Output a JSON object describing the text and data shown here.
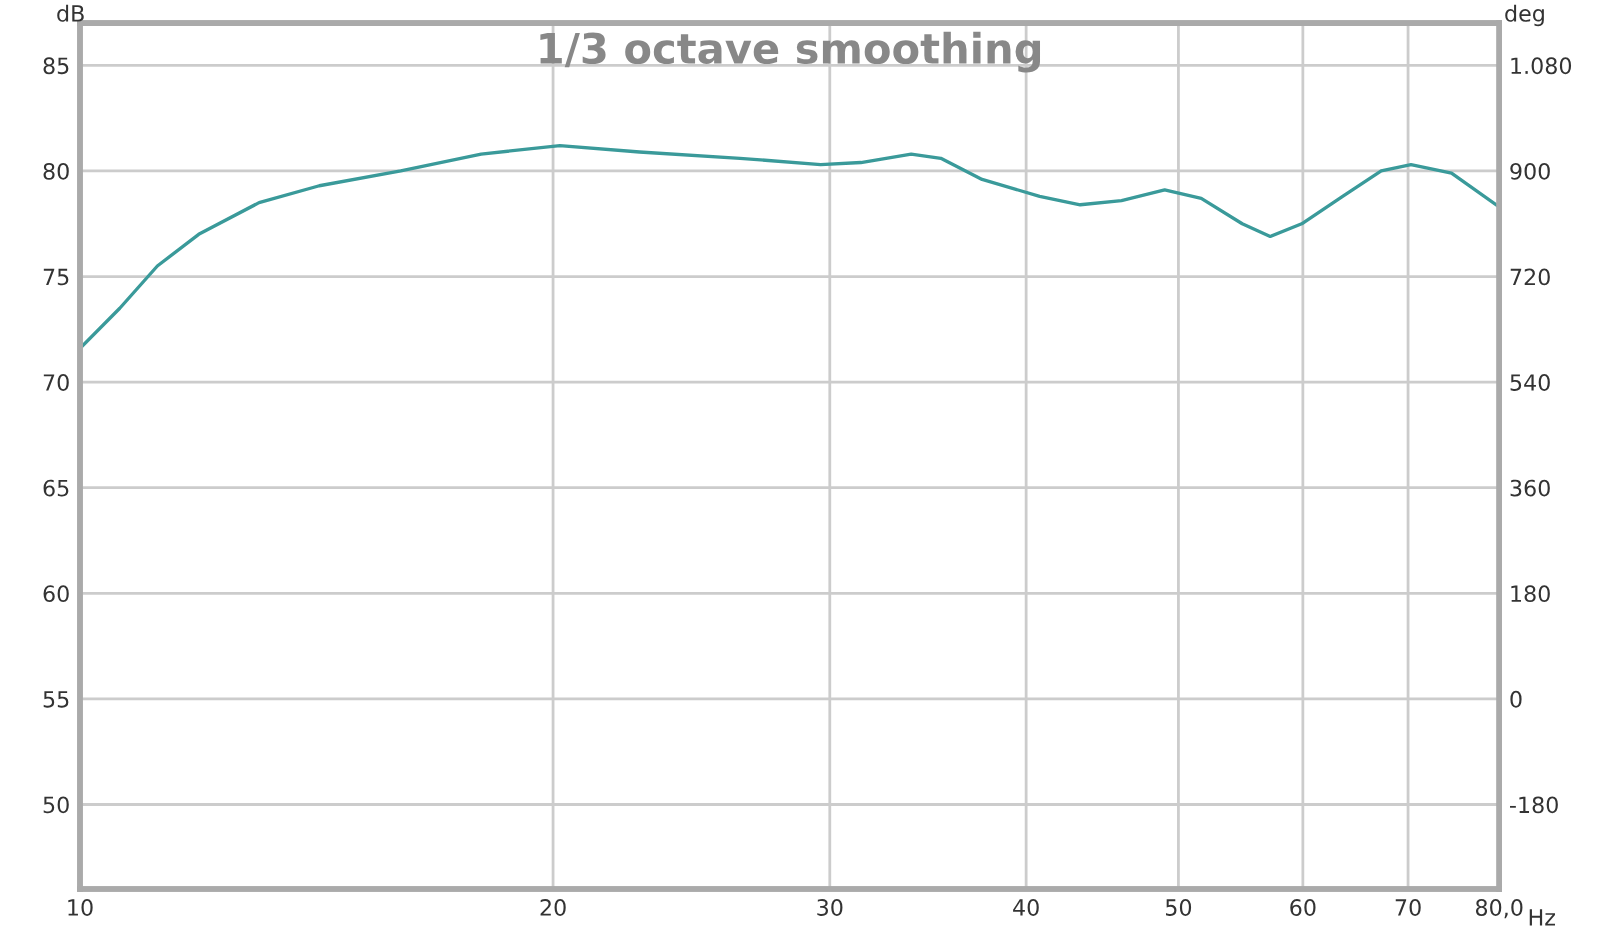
{
  "chart_data": {
    "type": "line",
    "title": "1/3 octave smoothing",
    "xlabel": "Hz",
    "ylabel": "dB",
    "y2label": "deg",
    "x": [
      10,
      10.6,
      11.2,
      11.9,
      13.0,
      14.2,
      16.0,
      18.0,
      20.2,
      22.7,
      26.3,
      29.6,
      31.4,
      33.8,
      35.3,
      37.5,
      40.8,
      43.3,
      46.0,
      49.0,
      51.7,
      54.9,
      57.2,
      59.9,
      63.6,
      67.3,
      70.3,
      74.6,
      80
    ],
    "series": [
      {
        "color": "#3a9a9a",
        "values": [
          71.6,
          73.5,
          75.5,
          77.0,
          78.5,
          79.3,
          80.0,
          80.8,
          81.2,
          80.9,
          80.6,
          80.3,
          80.4,
          80.8,
          80.6,
          79.6,
          78.8,
          78.4,
          78.6,
          79.1,
          78.7,
          77.5,
          76.9,
          77.5,
          78.8,
          80.0,
          80.3,
          79.9,
          78.3
        ]
      }
    ],
    "log": "x",
    "xlim": [
      10,
      80
    ],
    "xticks": [
      10,
      20,
      30,
      40,
      50,
      60,
      70,
      {
        "value": 80,
        "label": "80,0"
      }
    ],
    "ylim": [
      46,
      87
    ],
    "yticks": [
      50,
      55,
      60,
      65,
      70,
      75,
      80,
      85
    ],
    "y2lim": [
      -324,
      1152
    ],
    "y2ticks": [
      -180,
      0,
      180,
      360,
      540,
      720,
      900,
      {
        "value": 1080,
        "label": "1.080"
      }
    ],
    "grid": true,
    "marker": "none",
    "line_style": "solid"
  }
}
